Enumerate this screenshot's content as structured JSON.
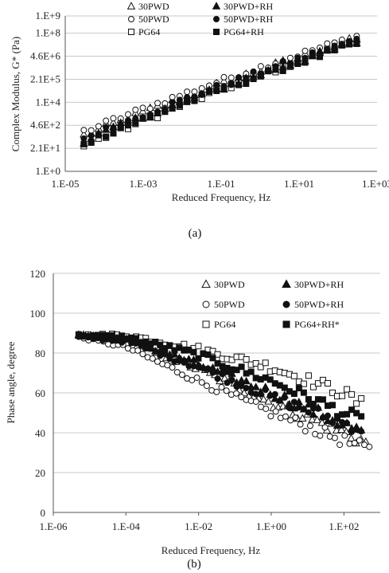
{
  "colors": {
    "marker": "#111111",
    "grid": "#c8c8c8",
    "text": "#222222"
  },
  "chart_data": [
    {
      "type": "scatter",
      "panel_label": "(a)",
      "xlabel": "Reduced Frequency, Hz",
      "ylabel": "Complex Modulus, G* (Pa)",
      "x_scale": "log",
      "y_scale": "log",
      "xlim": [
        1e-05,
        1000
      ],
      "ylim": [
        1,
        1000000000
      ],
      "x_ticks": [
        1e-05,
        0.001,
        0.1,
        10,
        1000
      ],
      "x_tick_labels": [
        "1.E-05",
        "1.E-03",
        "1.E-01",
        "1.E+01",
        "1.E+03"
      ],
      "y_ticks": [
        1,
        21.5,
        464,
        10000,
        215000,
        4640000,
        100000000,
        1000000000
      ],
      "y_tick_labels": [
        "1.E+0",
        "2.1E+1",
        "4.6E+2",
        "1.E+4",
        "2.1E+5",
        "4.6E+6",
        "1.E+8",
        "1.E+9"
      ],
      "grid": "horizontal",
      "legend": "top, three rows",
      "series": [
        {
          "name": "30PWD",
          "marker": "triangle-open",
          "x_range": [
            3e-05,
            300
          ],
          "y_range": [
            120,
            45000000
          ]
        },
        {
          "name": "50PWD",
          "marker": "circle-open",
          "x_range": [
            3e-05,
            300
          ],
          "y_range": [
            200,
            65000000
          ]
        },
        {
          "name": "PG64",
          "marker": "square-open",
          "x_range": [
            3e-05,
            300
          ],
          "y_range": [
            30,
            35000000
          ]
        },
        {
          "name": "30PWD+RH",
          "marker": "triangle-filled",
          "x_range": [
            3e-05,
            300
          ],
          "y_range": [
            60,
            30000000
          ]
        },
        {
          "name": "50PWD+RH",
          "marker": "circle-filled",
          "x_range": [
            3e-05,
            300
          ],
          "y_range": [
            80,
            40000000
          ]
        },
        {
          "name": "PG64+RH",
          "marker": "square-filled",
          "x_range": [
            3e-05,
            300
          ],
          "y_range": [
            45,
            25000000
          ]
        }
      ]
    },
    {
      "type": "scatter",
      "panel_label": "(b)",
      "xlabel": "Reduced Frequency, Hz",
      "ylabel": "Phase angle, degree",
      "x_scale": "log",
      "xlim": [
        1e-06,
        1000
      ],
      "ylim": [
        0,
        120
      ],
      "x_ticks": [
        1e-06,
        0.0001,
        0.01,
        1,
        100
      ],
      "x_tick_labels": [
        "1.E-06",
        "1.E-04",
        "1.E-02",
        "1.E+00",
        "1.E+02"
      ],
      "y_ticks": [
        0,
        20,
        40,
        60,
        80,
        100,
        120
      ],
      "y_tick_labels": [
        "0",
        "20",
        "40",
        "60",
        "80",
        "100",
        "120"
      ],
      "grid": "horizontal",
      "legend": "top-right, three rows",
      "series": [
        {
          "name": "30PWD",
          "marker": "triangle-open",
          "curve": [
            [
              5e-06,
              89
            ],
            [
              0.0001,
              86
            ],
            [
              0.01,
              72
            ],
            [
              1,
              55
            ],
            [
              100,
              40
            ],
            [
              400,
              35
            ]
          ]
        },
        {
          "name": "50PWD",
          "marker": "circle-open",
          "curve": [
            [
              5e-06,
              88
            ],
            [
              0.0001,
              83
            ],
            [
              0.01,
              66
            ],
            [
              1,
              50
            ],
            [
              100,
              36
            ],
            [
              500,
              31
            ]
          ]
        },
        {
          "name": "PG64",
          "marker": "square-open",
          "curve": [
            [
              5e-06,
              89
            ],
            [
              0.0001,
              89
            ],
            [
              0.01,
              82
            ],
            [
              1,
              73
            ],
            [
              100,
              60
            ],
            [
              300,
              54
            ]
          ]
        },
        {
          "name": "30PWD+RH",
          "marker": "triangle-filled",
          "curve": [
            [
              5e-06,
              89
            ],
            [
              0.0001,
              87
            ],
            [
              0.01,
              74
            ],
            [
              1,
              60
            ],
            [
              100,
              44
            ],
            [
              300,
              40
            ]
          ]
        },
        {
          "name": "50PWD+RH",
          "marker": "circle-filled",
          "curve": [
            [
              5e-06,
              88
            ],
            [
              0.0001,
              86
            ],
            [
              0.01,
              73
            ],
            [
              1,
              58
            ],
            [
              100,
              45
            ],
            [
              300,
              42
            ]
          ]
        },
        {
          "name": "PG64+RH*",
          "marker": "square-filled",
          "curve": [
            [
              5e-06,
              89
            ],
            [
              0.0001,
              88
            ],
            [
              0.01,
              79
            ],
            [
              1,
              66
            ],
            [
              100,
              50
            ],
            [
              300,
              46
            ]
          ]
        }
      ]
    }
  ]
}
